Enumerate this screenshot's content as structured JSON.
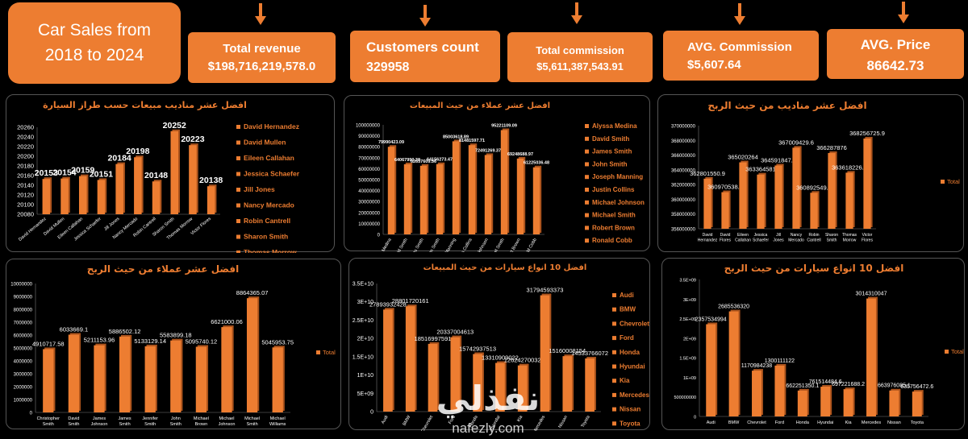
{
  "header": {
    "title_line1": "Car Sales from",
    "title_line2": "2018 to 2024"
  },
  "kpis": [
    {
      "label": "Total revenue",
      "value": "$198,716,219,578.0"
    },
    {
      "label": "Customers count",
      "value": "329958"
    },
    {
      "label": "Total commission",
      "value": "$5,611,387,543.91"
    },
    {
      "label": "AVG. Commission",
      "value": "$5,607.64"
    },
    {
      "label": "AVG. Price",
      "value": "86642.73"
    }
  ],
  "colors": {
    "accent": "#ed7d31",
    "background": "#000000",
    "text": "#ffffff",
    "panel_border": "#555555"
  },
  "watermark": {
    "arabic": "نفذلي",
    "latin": "nafezly.com"
  },
  "chart_data": [
    {
      "id": "c1",
      "type": "bar",
      "title": "افضل عشر مناديب مبيعات حسب طراز السيارة",
      "categories": [
        "David Hernandez",
        "David Mullen",
        "Eileen Callahan",
        "Jessica Schaefer",
        "Jill Jones",
        "Nancy Mercado",
        "Robin Cantrell",
        "Sharon Smith",
        "Thomas Morrow",
        "Victor Flores"
      ],
      "values": [
        20153,
        20154,
        20159,
        20151,
        20184,
        20198,
        20148,
        20252,
        20223,
        20138
      ],
      "ylim": [
        20080,
        20260
      ],
      "yticks": [
        20080,
        20100,
        20120,
        20140,
        20160,
        20180,
        20200,
        20220,
        20240,
        20260
      ],
      "legend": "per-category",
      "legend_position": "right",
      "grid": false
    },
    {
      "id": "c2",
      "type": "bar",
      "title": "افضل عشر عملاء من حيث المبيعات",
      "categories": [
        "Alyssa Medina",
        "David Smith",
        "James Smith",
        "John Smith",
        "Joseph Manning",
        "Justin Collins",
        "Michael Johnson",
        "Michael Smith",
        "Robert Brown",
        "Ronald Cobb"
      ],
      "values": [
        79990423.09,
        64067990.38,
        62657609.56,
        64156273.47,
        85003618.89,
        81481597.71,
        72491269.37,
        95221109.09,
        69248688.97,
        61225036.48
      ],
      "value_labels": [
        "79990423.09",
        "64067990.38",
        "62657609.56",
        "64156273.47",
        "85003618.89",
        "81481597.71",
        "72491269.37",
        "95221109.09",
        "69248688.97",
        "61225036.48"
      ],
      "ylim": [
        0,
        100000000
      ],
      "yticks": [
        0,
        10000000,
        20000000,
        30000000,
        40000000,
        50000000,
        60000000,
        70000000,
        80000000,
        90000000,
        100000000
      ],
      "legend": "per-category",
      "legend_position": "right",
      "grid": false
    },
    {
      "id": "c3",
      "type": "bar",
      "title": "افضل عشر مناديب من حيث الربح",
      "categories": [
        "David Hernandez",
        "David Flores",
        "Eileen Callahan",
        "Jessica Schaefer",
        "Jill Jones",
        "Nancy Mercado",
        "Robin Cantrell",
        "Sharon Smith",
        "Thomas Morrow",
        "Victor Flores"
      ],
      "values": [
        362801550.9,
        360970538.1,
        365020264,
        363364581,
        364591847.8,
        367009429.6,
        360892549.7,
        366287876,
        363618226.1,
        368256725.9
      ],
      "value_labels": [
        "362801550.9",
        "360970538.1",
        "365020264",
        "363364581",
        "364591847.8",
        "367009429.6",
        "360892549.7",
        "366287876",
        "363618226.1",
        "368256725.9"
      ],
      "ylim": [
        356000000,
        370000000
      ],
      "yticks": [
        356000000,
        358000000,
        360000000,
        362000000,
        364000000,
        366000000,
        368000000,
        370000000
      ],
      "legend": [
        "Total"
      ],
      "legend_position": "right",
      "grid": false
    },
    {
      "id": "c4",
      "type": "bar",
      "title": "افضل عشر عملاء من حيث الربح",
      "categories": [
        "Christopher Smith",
        "David Smith",
        "James Johnson",
        "James Smith",
        "Jennifer Smith",
        "John Smith",
        "Michael Brown",
        "Michael Johnson",
        "Michael Smith",
        "Michael Williams"
      ],
      "values": [
        4910717.58,
        6033669.1,
        5211153.96,
        5886502.12,
        5133129.14,
        5583899.18,
        5095740.12,
        6621000.06,
        8864365.07,
        5045953.75
      ],
      "value_labels": [
        "4910717.58",
        "6033669.1",
        "5211153.96",
        "5886502.12",
        "5133129.14",
        "5583899.18",
        "5095740.12",
        "6621000.06",
        "8864365.07",
        "5045953.75"
      ],
      "ylim": [
        0,
        10000000
      ],
      "yticks": [
        0,
        1000000,
        2000000,
        3000000,
        4000000,
        5000000,
        6000000,
        7000000,
        8000000,
        9000000,
        10000000
      ],
      "legend": [
        "Total"
      ],
      "legend_position": "right",
      "grid": false
    },
    {
      "id": "c5",
      "type": "bar",
      "title": "افضل 10 انواع سيارات من حيث المبيعات",
      "categories": [
        "Audi",
        "BMW",
        "Chevrolet",
        "Ford",
        "Honda",
        "Hyundai",
        "Kia",
        "Mercedes",
        "Nissan",
        "Toyota"
      ],
      "values": [
        27893932428,
        28801720161,
        18516997591,
        20337004613,
        15742937513,
        13310909022,
        12624270032,
        31794593373,
        15160008154,
        14533766072
      ],
      "value_labels": [
        "27893932428",
        "28801720161",
        "18516997591",
        "20337004613",
        "15742937513",
        "13310909022",
        "12624270032",
        "31794593373",
        "15160008154",
        "14533766072"
      ],
      "ylim": [
        0,
        35000000000
      ],
      "yticks": [
        0,
        5000000000,
        10000000000,
        15000000000,
        20000000000,
        25000000000,
        30000000000,
        35000000000
      ],
      "ytick_labels": [
        "0",
        "5E+09",
        "1E+10",
        "1.5E+10",
        "2E+10",
        "2.5E+10",
        "3E+10",
        "3.5E+10"
      ],
      "legend": "per-category",
      "legend_position": "right",
      "grid": false
    },
    {
      "id": "c6",
      "type": "bar",
      "title": "افضل 10 انواع سيارات من حيث الربح",
      "categories": [
        "Audi",
        "BMW",
        "Chevrolet",
        "Ford",
        "Honda",
        "Hyundai",
        "Kia",
        "Mercedes",
        "Nissan",
        "Toyota"
      ],
      "values": [
        2357534994,
        2685536320,
        1170984238,
        1300111122,
        662251350.1,
        761514484.6,
        697221688.2,
        3014310047,
        663976085.1,
        635756472.6
      ],
      "value_labels": [
        "2357534994",
        "2685536320",
        "1170984238",
        "1300111122",
        "662251350.1",
        "761514484.6",
        "697221688.2",
        "3014310047",
        "663976085.1",
        "635756472.6"
      ],
      "ylim": [
        0,
        3500000000
      ],
      "yticks": [
        0,
        500000000,
        1000000000,
        1500000000,
        2000000000,
        2500000000,
        3000000000,
        3500000000
      ],
      "ytick_labels": [
        "0",
        "500000000",
        "1E+09",
        "1.5E+09",
        "2E+09",
        "2.5E+09",
        "3E+09",
        "3.5E+09"
      ],
      "legend": [
        "Total"
      ],
      "legend_position": "right",
      "grid": false
    }
  ]
}
